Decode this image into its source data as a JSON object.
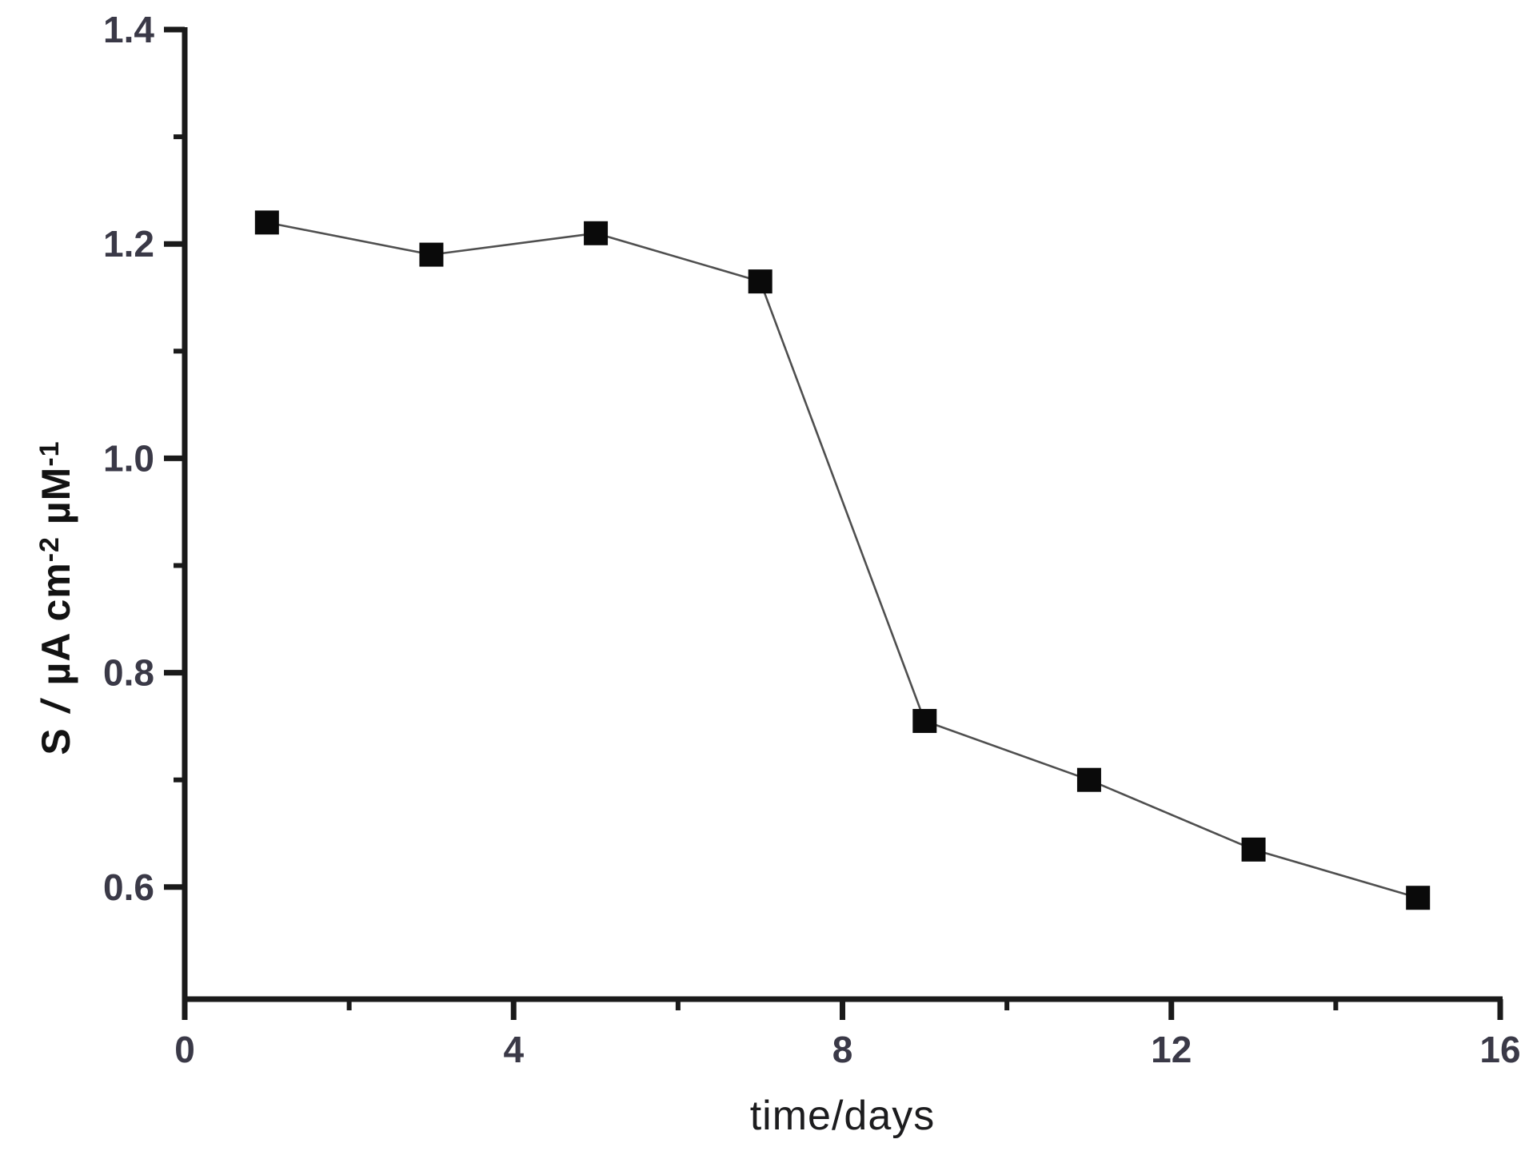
{
  "figure": {
    "background": "#ffffff",
    "axis_color": "#1a1a1a",
    "tick_label_color": "#3a3947",
    "line_color": "#4f4f4f",
    "marker_color": "#0a0a0a"
  },
  "chart_data": {
    "type": "line",
    "title": "",
    "xlabel": "time/days",
    "ylabel": "S / µA cm⁻² µM⁻¹",
    "x": [
      1,
      3,
      5,
      7,
      9,
      11,
      13,
      15
    ],
    "y": [
      1.22,
      1.19,
      1.21,
      1.165,
      0.755,
      0.7,
      0.635,
      0.59
    ],
    "marker": "filled-square",
    "line_style": "solid-thin",
    "xlim": [
      0,
      16
    ],
    "ylim": [
      0.495,
      1.4
    ],
    "x_major_ticks": [
      0,
      4,
      8,
      12,
      16
    ],
    "x_minor_ticks": [
      2,
      6,
      10,
      14
    ],
    "x_tick_labels": [
      "0",
      "4",
      "8",
      "12",
      "16"
    ],
    "y_major_ticks": [
      1.4,
      1.2,
      1.0,
      0.8,
      0.6
    ],
    "y_minor_ticks": [
      1.3,
      1.1,
      0.9,
      0.7
    ],
    "y_tick_labels": [
      "1.4",
      "1.2",
      "1.0",
      "0.8",
      "0.6"
    ],
    "grid": false,
    "legend": "none",
    "axes_shown": [
      "left",
      "bottom"
    ]
  },
  "ylabel_parts": {
    "symbol": "S",
    "slash": "/",
    "unit1": "µA cm",
    "sup1": "-2",
    "unit2": "µM",
    "sup2": "-1"
  }
}
